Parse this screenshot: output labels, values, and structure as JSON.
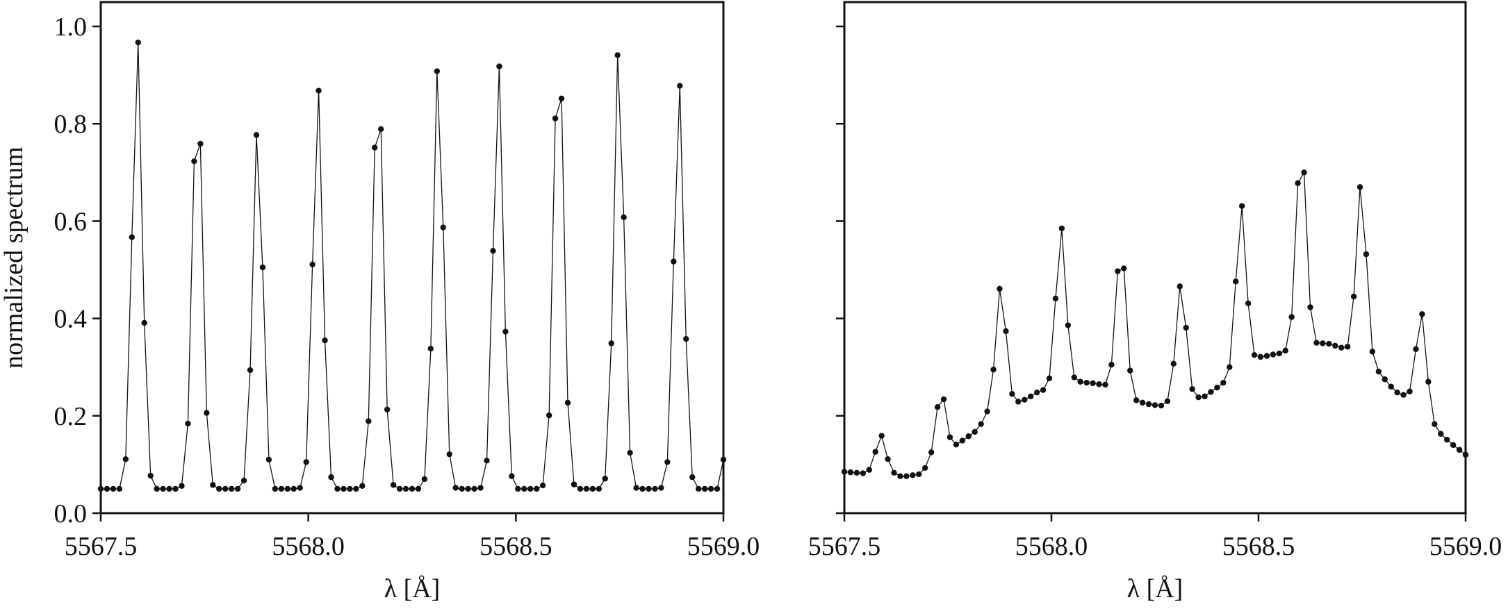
{
  "chart_data": [
    {
      "type": "line",
      "xlabel": "λ [Å]",
      "ylabel": "normalized spectrum",
      "xlim": [
        5567.5,
        5569.0
      ],
      "ylim": [
        0,
        1.05
      ],
      "xticks": [
        5567.5,
        {
          "value": 5568,
          "label": "5568.0"
        },
        5568.5,
        {
          "value": 5569,
          "label": "5569.0"
        }
      ],
      "yticks": [
        {
          "value": 0,
          "label": "0.0"
        },
        0.2,
        0.4,
        0.6,
        0.8,
        {
          "value": 1,
          "label": "1.0"
        }
      ],
      "color": "#111111",
      "x": [
        5567.5,
        5567.515,
        5567.53,
        5567.545,
        5567.56,
        5567.575,
        5567.59,
        5567.605,
        5567.62,
        5567.635,
        5567.65,
        5567.665,
        5567.68,
        5567.695,
        5567.71,
        5567.725,
        5567.74,
        5567.755,
        5567.77,
        5567.785,
        5567.8,
        5567.815,
        5567.83,
        5567.845,
        5567.86,
        5567.875,
        5567.89,
        5567.905,
        5567.92,
        5567.935,
        5567.95,
        5567.965,
        5567.98,
        5567.995,
        5568.01,
        5568.025,
        5568.04,
        5568.055,
        5568.07,
        5568.085,
        5568.1,
        5568.115,
        5568.13,
        5568.145,
        5568.16,
        5568.175,
        5568.19,
        5568.205,
        5568.22,
        5568.235,
        5568.25,
        5568.265,
        5568.28,
        5568.295,
        5568.31,
        5568.325,
        5568.34,
        5568.355,
        5568.37,
        5568.385,
        5568.4,
        5568.415,
        5568.43,
        5568.445,
        5568.46,
        5568.475,
        5568.49,
        5568.505,
        5568.52,
        5568.535,
        5568.55,
        5568.565,
        5568.58,
        5568.595,
        5568.61,
        5568.625,
        5568.64,
        5568.655,
        5568.67,
        5568.685,
        5568.7,
        5568.715,
        5568.73,
        5568.745,
        5568.76,
        5568.775,
        5568.79,
        5568.805,
        5568.82,
        5568.835,
        5568.85,
        5568.865,
        5568.88,
        5568.895,
        5568.91,
        5568.925,
        5568.94,
        5568.955,
        5568.97,
        5568.985,
        5569.0
      ],
      "values": [
        0.05,
        0.05,
        0.05,
        0.05,
        0.111,
        0.567,
        0.967,
        0.391,
        0.077,
        0.05,
        0.05,
        0.05,
        0.05,
        0.056,
        0.184,
        0.723,
        0.759,
        0.206,
        0.058,
        0.05,
        0.05,
        0.05,
        0.05,
        0.067,
        0.294,
        0.777,
        0.505,
        0.11,
        0.05,
        0.05,
        0.05,
        0.05,
        0.052,
        0.105,
        0.511,
        0.868,
        0.355,
        0.074,
        0.05,
        0.05,
        0.05,
        0.05,
        0.056,
        0.189,
        0.751,
        0.789,
        0.213,
        0.058,
        0.05,
        0.05,
        0.05,
        0.05,
        0.07,
        0.338,
        0.908,
        0.587,
        0.121,
        0.052,
        0.05,
        0.05,
        0.05,
        0.052,
        0.108,
        0.539,
        0.918,
        0.373,
        0.076,
        0.05,
        0.05,
        0.05,
        0.05,
        0.057,
        0.201,
        0.811,
        0.852,
        0.227,
        0.059,
        0.05,
        0.05,
        0.05,
        0.05,
        0.071,
        0.349,
        0.941,
        0.608,
        0.124,
        0.052,
        0.05,
        0.05,
        0.05,
        0.052,
        0.105,
        0.517,
        0.878,
        0.358,
        0.074,
        0.05,
        0.05,
        0.05,
        0.05,
        0.11
      ]
    },
    {
      "type": "line",
      "xlabel": "λ [Å]",
      "xlim": [
        5567.5,
        5569.0
      ],
      "ylim": [
        0,
        1.05
      ],
      "xticks": [
        5567.5,
        {
          "value": 5568,
          "label": "5568.0"
        },
        5568.5,
        {
          "value": 5569,
          "label": "5569.0"
        }
      ],
      "yticks": [
        0,
        0.2,
        0.4,
        0.6,
        0.8,
        1
      ],
      "color": "#111111",
      "x": [
        5567.5,
        5567.515,
        5567.53,
        5567.545,
        5567.56,
        5567.575,
        5567.59,
        5567.605,
        5567.62,
        5567.635,
        5567.65,
        5567.665,
        5567.68,
        5567.695,
        5567.71,
        5567.725,
        5567.74,
        5567.755,
        5567.77,
        5567.785,
        5567.8,
        5567.815,
        5567.83,
        5567.845,
        5567.86,
        5567.875,
        5567.89,
        5567.905,
        5567.92,
        5567.935,
        5567.95,
        5567.965,
        5567.98,
        5567.995,
        5568.01,
        5568.025,
        5568.04,
        5568.055,
        5568.07,
        5568.085,
        5568.1,
        5568.115,
        5568.13,
        5568.145,
        5568.16,
        5568.175,
        5568.19,
        5568.205,
        5568.22,
        5568.235,
        5568.25,
        5568.265,
        5568.28,
        5568.295,
        5568.31,
        5568.325,
        5568.34,
        5568.355,
        5568.37,
        5568.385,
        5568.4,
        5568.415,
        5568.43,
        5568.445,
        5568.46,
        5568.475,
        5568.49,
        5568.505,
        5568.52,
        5568.535,
        5568.55,
        5568.565,
        5568.58,
        5568.595,
        5568.61,
        5568.625,
        5568.64,
        5568.655,
        5568.67,
        5568.685,
        5568.7,
        5568.715,
        5568.73,
        5568.745,
        5568.76,
        5568.775,
        5568.79,
        5568.805,
        5568.82,
        5568.835,
        5568.85,
        5568.865,
        5568.88,
        5568.895,
        5568.91,
        5568.925,
        5568.94,
        5568.955,
        5568.97,
        5568.985,
        5569.0
      ],
      "values": [
        0.085,
        0.084,
        0.083,
        0.082,
        0.089,
        0.126,
        0.159,
        0.111,
        0.083,
        0.076,
        0.076,
        0.078,
        0.08,
        0.093,
        0.125,
        0.218,
        0.234,
        0.156,
        0.141,
        0.149,
        0.158,
        0.167,
        0.183,
        0.209,
        0.295,
        0.461,
        0.374,
        0.245,
        0.229,
        0.233,
        0.24,
        0.248,
        0.253,
        0.277,
        0.441,
        0.585,
        0.386,
        0.279,
        0.27,
        0.268,
        0.267,
        0.265,
        0.264,
        0.305,
        0.497,
        0.503,
        0.293,
        0.232,
        0.227,
        0.224,
        0.222,
        0.221,
        0.23,
        0.307,
        0.466,
        0.381,
        0.255,
        0.238,
        0.24,
        0.249,
        0.258,
        0.268,
        0.3,
        0.476,
        0.631,
        0.431,
        0.325,
        0.321,
        0.323,
        0.326,
        0.328,
        0.334,
        0.403,
        0.678,
        0.7,
        0.423,
        0.35,
        0.349,
        0.348,
        0.344,
        0.34,
        0.342,
        0.445,
        0.67,
        0.532,
        0.332,
        0.291,
        0.275,
        0.26,
        0.248,
        0.243,
        0.25,
        0.337,
        0.409,
        0.27,
        0.183,
        0.163,
        0.151,
        0.14,
        0.13,
        0.12
      ]
    }
  ]
}
